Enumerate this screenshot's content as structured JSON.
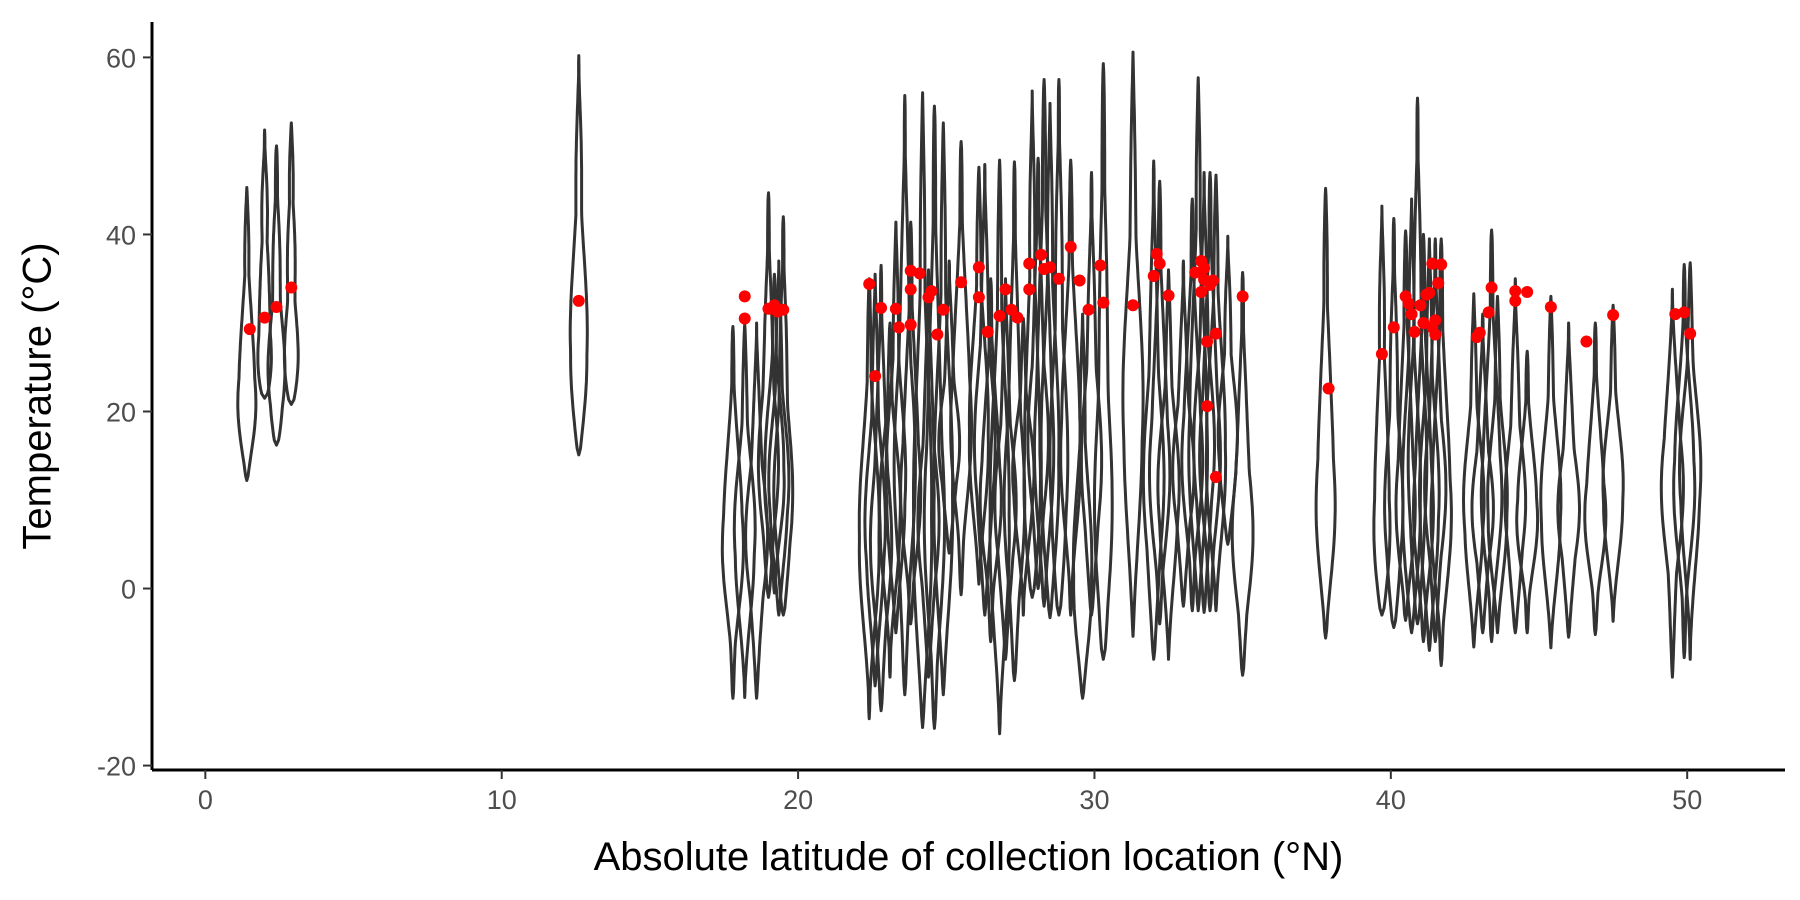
{
  "chart_data": {
    "type": "violin",
    "title": "",
    "xlabel": "Absolute latitude of collection location (°N)",
    "ylabel": "Temperature (°C)",
    "xlim": [
      -1.8,
      53.3
    ],
    "ylim": [
      -20.5,
      64
    ],
    "x_ticks": [
      0,
      10,
      20,
      30,
      40,
      50
    ],
    "y_ticks": [
      -20,
      0,
      20,
      40,
      60
    ],
    "x_tick_labels": [
      "0",
      "10",
      "20",
      "30",
      "40",
      "50"
    ],
    "y_tick_labels": [
      "-20",
      "0",
      "20",
      "40",
      "60"
    ],
    "grid": false,
    "colors": {
      "violin_outline": "#333333",
      "point": "#ff0000",
      "axis": "#000000"
    },
    "violins": [
      {
        "x": 1.4,
        "min": 12.2,
        "max": 45.3,
        "median": 20
      },
      {
        "x": 2.0,
        "min": 21.5,
        "max": 51.8,
        "median": 24
      },
      {
        "x": 2.4,
        "min": 16.2,
        "max": 50.0,
        "median": 22
      },
      {
        "x": 2.9,
        "min": 20.8,
        "max": 52.6,
        "median": 23
      },
      {
        "x": 12.6,
        "min": 15.1,
        "max": 60.2,
        "median": 25
      },
      {
        "x": 17.8,
        "min": -12.4,
        "max": 29.6,
        "median": 5
      },
      {
        "x": 18.2,
        "min": -12.3,
        "max": 29.9,
        "median": 5
      },
      {
        "x": 18.6,
        "min": -12.4,
        "max": 30.0,
        "median": 5
      },
      {
        "x": 19.0,
        "min": -1.0,
        "max": 44.7,
        "median": 12
      },
      {
        "x": 19.2,
        "min": -0.5,
        "max": 35.5,
        "median": 12
      },
      {
        "x": 19.35,
        "min": -3.0,
        "max": 37.0,
        "median": 10
      },
      {
        "x": 19.5,
        "min": -3.0,
        "max": 42.0,
        "median": 8
      },
      {
        "x": 22.4,
        "min": -14.7,
        "max": 35.0,
        "median": 5
      },
      {
        "x": 22.6,
        "min": -11.0,
        "max": 35.5,
        "median": 5
      },
      {
        "x": 22.8,
        "min": -13.8,
        "max": 36.5,
        "median": 4
      },
      {
        "x": 23.1,
        "min": -10.0,
        "max": 30.0,
        "median": 8
      },
      {
        "x": 23.3,
        "min": -5.0,
        "max": 41.4,
        "median": 10
      },
      {
        "x": 23.6,
        "min": -12.0,
        "max": 55.7,
        "median": 12
      },
      {
        "x": 23.8,
        "min": -4.0,
        "max": 41.4,
        "median": 10
      },
      {
        "x": 24.2,
        "min": -15.7,
        "max": 56.0,
        "median": 5
      },
      {
        "x": 24.4,
        "min": -10.0,
        "max": 36.0,
        "median": 6
      },
      {
        "x": 24.6,
        "min": -15.8,
        "max": 54.5,
        "median": 6
      },
      {
        "x": 24.9,
        "min": -12.0,
        "max": 52.6,
        "median": 8
      },
      {
        "x": 25.1,
        "min": 4.0,
        "max": 37.0,
        "median": 15
      },
      {
        "x": 25.5,
        "min": -0.7,
        "max": 50.5,
        "median": 18
      },
      {
        "x": 26.1,
        "min": 0.5,
        "max": 47.6,
        "median": 16
      },
      {
        "x": 26.3,
        "min": -3.0,
        "max": 47.9,
        "median": 14
      },
      {
        "x": 26.5,
        "min": -6.0,
        "max": 35.0,
        "median": 10
      },
      {
        "x": 26.8,
        "min": -16.4,
        "max": 48.4,
        "median": 6
      },
      {
        "x": 27.0,
        "min": -8.0,
        "max": 35.0,
        "median": 8
      },
      {
        "x": 27.3,
        "min": -10.4,
        "max": 48.2,
        "median": 8
      },
      {
        "x": 27.6,
        "min": -3.0,
        "max": 30.5,
        "median": 12
      },
      {
        "x": 27.9,
        "min": -1.0,
        "max": 56.2,
        "median": 10
      },
      {
        "x": 28.1,
        "min": 0.0,
        "max": 48.6,
        "median": 15
      },
      {
        "x": 28.3,
        "min": -2.0,
        "max": 57.5,
        "median": 14
      },
      {
        "x": 28.5,
        "min": -3.3,
        "max": 54.8,
        "median": 12
      },
      {
        "x": 28.8,
        "min": -3.0,
        "max": 57.5,
        "median": 10
      },
      {
        "x": 29.2,
        "min": -3.0,
        "max": 48.4,
        "median": 15
      },
      {
        "x": 29.6,
        "min": -12.4,
        "max": 31.0,
        "median": 0
      },
      {
        "x": 29.9,
        "min": -3.0,
        "max": 47.0,
        "median": 12
      },
      {
        "x": 30.3,
        "min": -8.0,
        "max": 59.3,
        "median": 5
      },
      {
        "x": 31.3,
        "min": -5.4,
        "max": 60.6,
        "median": 18
      },
      {
        "x": 32.0,
        "min": -8.0,
        "max": 48.3,
        "median": 10
      },
      {
        "x": 32.2,
        "min": -4.0,
        "max": 46.0,
        "median": 12
      },
      {
        "x": 32.5,
        "min": -8.0,
        "max": 36.0,
        "median": 10
      },
      {
        "x": 33.0,
        "min": -2.0,
        "max": 37.0,
        "median": 12
      },
      {
        "x": 33.3,
        "min": -2.5,
        "max": 44.0,
        "median": 14
      },
      {
        "x": 33.5,
        "min": -2.5,
        "max": 57.7,
        "median": 14
      },
      {
        "x": 33.7,
        "min": -2.7,
        "max": 47.0,
        "median": 14
      },
      {
        "x": 33.9,
        "min": -2.5,
        "max": 47.0,
        "median": 14
      },
      {
        "x": 34.1,
        "min": -2.5,
        "max": 46.7,
        "median": 14
      },
      {
        "x": 34.5,
        "min": 5.0,
        "max": 39.8,
        "median": 15
      },
      {
        "x": 35.0,
        "min": -9.8,
        "max": 35.7,
        "median": 5
      },
      {
        "x": 37.8,
        "min": -5.6,
        "max": 45.2,
        "median": 8
      },
      {
        "x": 39.7,
        "min": -3.0,
        "max": 43.2,
        "median": 5
      },
      {
        "x": 40.1,
        "min": -4.4,
        "max": 41.8,
        "median": 6
      },
      {
        "x": 40.5,
        "min": -3.6,
        "max": 40.4,
        "median": 8
      },
      {
        "x": 40.7,
        "min": -5.0,
        "max": 44.0,
        "median": 8
      },
      {
        "x": 40.9,
        "min": -4.0,
        "max": 55.4,
        "median": 10
      },
      {
        "x": 41.1,
        "min": -6.0,
        "max": 40.0,
        "median": 8
      },
      {
        "x": 41.3,
        "min": -7.0,
        "max": 39.5,
        "median": 8
      },
      {
        "x": 41.5,
        "min": -6.0,
        "max": 39.5,
        "median": 10
      },
      {
        "x": 41.7,
        "min": -8.7,
        "max": 39.5,
        "median": 8
      },
      {
        "x": 42.8,
        "min": -6.6,
        "max": 33.3,
        "median": 8
      },
      {
        "x": 43.1,
        "min": -5.0,
        "max": 31.0,
        "median": 8
      },
      {
        "x": 43.4,
        "min": -6.0,
        "max": 40.5,
        "median": 10
      },
      {
        "x": 43.6,
        "min": -5.0,
        "max": 33.0,
        "median": 8
      },
      {
        "x": 44.2,
        "min": -5.0,
        "max": 35.0,
        "median": 8
      },
      {
        "x": 44.6,
        "min": -5.0,
        "max": 26.8,
        "median": 8
      },
      {
        "x": 45.4,
        "min": -6.7,
        "max": 33.0,
        "median": 8
      },
      {
        "x": 46.0,
        "min": -5.5,
        "max": 30.0,
        "median": 8
      },
      {
        "x": 46.9,
        "min": -5.2,
        "max": 30.0,
        "median": 8
      },
      {
        "x": 47.5,
        "min": -3.7,
        "max": 32.0,
        "median": 10
      },
      {
        "x": 49.5,
        "min": -10.0,
        "max": 33.8,
        "median": 12
      },
      {
        "x": 49.9,
        "min": -7.8,
        "max": 36.6,
        "median": 12
      },
      {
        "x": 50.1,
        "min": -8.0,
        "max": 36.8,
        "median": 12
      }
    ],
    "points": [
      {
        "x": 1.5,
        "y": 29.3
      },
      {
        "x": 2.0,
        "y": 30.6
      },
      {
        "x": 2.4,
        "y": 31.8
      },
      {
        "x": 2.9,
        "y": 34.0
      },
      {
        "x": 12.6,
        "y": 32.5
      },
      {
        "x": 18.2,
        "y": 33.0
      },
      {
        "x": 18.2,
        "y": 30.5
      },
      {
        "x": 19.0,
        "y": 31.6
      },
      {
        "x": 19.2,
        "y": 32.0
      },
      {
        "x": 19.3,
        "y": 31.3
      },
      {
        "x": 19.5,
        "y": 31.5
      },
      {
        "x": 22.4,
        "y": 34.4
      },
      {
        "x": 22.6,
        "y": 24.0
      },
      {
        "x": 22.8,
        "y": 31.7
      },
      {
        "x": 23.3,
        "y": 31.6
      },
      {
        "x": 23.4,
        "y": 29.5
      },
      {
        "x": 23.8,
        "y": 35.9
      },
      {
        "x": 23.8,
        "y": 33.8
      },
      {
        "x": 23.8,
        "y": 29.8
      },
      {
        "x": 24.1,
        "y": 35.6
      },
      {
        "x": 24.4,
        "y": 32.9
      },
      {
        "x": 24.5,
        "y": 33.6
      },
      {
        "x": 24.7,
        "y": 28.7
      },
      {
        "x": 24.9,
        "y": 31.5
      },
      {
        "x": 25.5,
        "y": 34.6
      },
      {
        "x": 26.1,
        "y": 36.3
      },
      {
        "x": 26.1,
        "y": 32.9
      },
      {
        "x": 26.4,
        "y": 29.0
      },
      {
        "x": 26.8,
        "y": 30.8
      },
      {
        "x": 27.0,
        "y": 33.8
      },
      {
        "x": 27.2,
        "y": 31.5
      },
      {
        "x": 27.4,
        "y": 30.6
      },
      {
        "x": 27.8,
        "y": 36.7
      },
      {
        "x": 27.8,
        "y": 33.8
      },
      {
        "x": 28.2,
        "y": 37.7
      },
      {
        "x": 28.3,
        "y": 36.1
      },
      {
        "x": 28.5,
        "y": 36.3
      },
      {
        "x": 28.8,
        "y": 35.0
      },
      {
        "x": 29.2,
        "y": 38.6
      },
      {
        "x": 29.5,
        "y": 34.8
      },
      {
        "x": 29.8,
        "y": 31.5
      },
      {
        "x": 30.2,
        "y": 36.5
      },
      {
        "x": 30.3,
        "y": 32.3
      },
      {
        "x": 31.3,
        "y": 32.0
      },
      {
        "x": 32.0,
        "y": 35.3
      },
      {
        "x": 32.1,
        "y": 37.8
      },
      {
        "x": 32.2,
        "y": 36.7
      },
      {
        "x": 32.5,
        "y": 33.1
      },
      {
        "x": 33.4,
        "y": 35.7
      },
      {
        "x": 33.6,
        "y": 37.0
      },
      {
        "x": 33.7,
        "y": 36.2
      },
      {
        "x": 33.6,
        "y": 33.5
      },
      {
        "x": 33.7,
        "y": 34.9
      },
      {
        "x": 33.9,
        "y": 34.3
      },
      {
        "x": 33.8,
        "y": 27.9
      },
      {
        "x": 33.8,
        "y": 20.6
      },
      {
        "x": 34.1,
        "y": 28.8
      },
      {
        "x": 34.1,
        "y": 12.6
      },
      {
        "x": 34.0,
        "y": 34.8
      },
      {
        "x": 35.0,
        "y": 33.0
      },
      {
        "x": 37.9,
        "y": 22.6
      },
      {
        "x": 39.7,
        "y": 26.5
      },
      {
        "x": 40.1,
        "y": 29.5
      },
      {
        "x": 40.5,
        "y": 33.0
      },
      {
        "x": 40.6,
        "y": 32.2
      },
      {
        "x": 40.7,
        "y": 31.0
      },
      {
        "x": 40.8,
        "y": 29.0
      },
      {
        "x": 41.0,
        "y": 32.0
      },
      {
        "x": 41.1,
        "y": 30.0
      },
      {
        "x": 41.2,
        "y": 33.2
      },
      {
        "x": 41.3,
        "y": 33.4
      },
      {
        "x": 41.4,
        "y": 29.5
      },
      {
        "x": 41.4,
        "y": 36.7
      },
      {
        "x": 41.5,
        "y": 28.7
      },
      {
        "x": 41.5,
        "y": 30.3
      },
      {
        "x": 41.6,
        "y": 34.5
      },
      {
        "x": 41.7,
        "y": 36.6
      },
      {
        "x": 42.9,
        "y": 28.4
      },
      {
        "x": 43.0,
        "y": 28.9
      },
      {
        "x": 43.3,
        "y": 31.2
      },
      {
        "x": 43.4,
        "y": 34.0
      },
      {
        "x": 44.2,
        "y": 32.5
      },
      {
        "x": 44.2,
        "y": 33.6
      },
      {
        "x": 44.6,
        "y": 33.5
      },
      {
        "x": 45.4,
        "y": 31.8
      },
      {
        "x": 46.6,
        "y": 27.9
      },
      {
        "x": 47.5,
        "y": 30.9
      },
      {
        "x": 49.6,
        "y": 31.0
      },
      {
        "x": 49.9,
        "y": 31.2
      },
      {
        "x": 50.1,
        "y": 28.8
      }
    ]
  }
}
